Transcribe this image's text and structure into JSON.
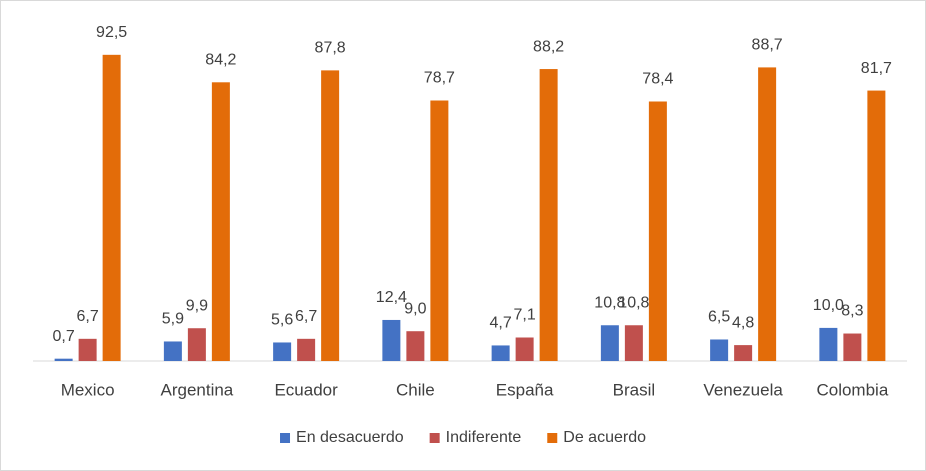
{
  "chart_data": {
    "type": "bar",
    "categories": [
      "Mexico",
      "Argentina",
      "Ecuador",
      "Chile",
      "España",
      "Brasil",
      "Venezuela",
      "Colombia"
    ],
    "series": [
      {
        "name": "En desacuerdo",
        "color": "#4472c4",
        "values": [
          0.7,
          5.9,
          5.6,
          12.4,
          4.7,
          10.8,
          6.5,
          10.0
        ],
        "value_labels": [
          "0,7",
          "5,9",
          "5,6",
          "12,4",
          "4,7",
          "10,8",
          "6,5",
          "10,0"
        ]
      },
      {
        "name": "Indiferente",
        "color": "#c0504d",
        "values": [
          6.7,
          9.9,
          6.7,
          9.0,
          7.1,
          10.8,
          4.8,
          8.3
        ],
        "value_labels": [
          "6,7",
          "9,9",
          "6,7",
          "9,0",
          "7,1",
          "10,8",
          "4,8",
          "8,3"
        ]
      },
      {
        "name": "De acuerdo",
        "color": "#e36c09",
        "values": [
          92.5,
          84.2,
          87.8,
          78.7,
          88.2,
          78.4,
          88.7,
          81.7
        ],
        "value_labels": [
          "92,5",
          "84,2",
          "87,8",
          "78,7",
          "88,2",
          "78,4",
          "88,7",
          "81,7"
        ]
      }
    ],
    "ylim": [
      0,
      100
    ],
    "legend": "bottom"
  }
}
